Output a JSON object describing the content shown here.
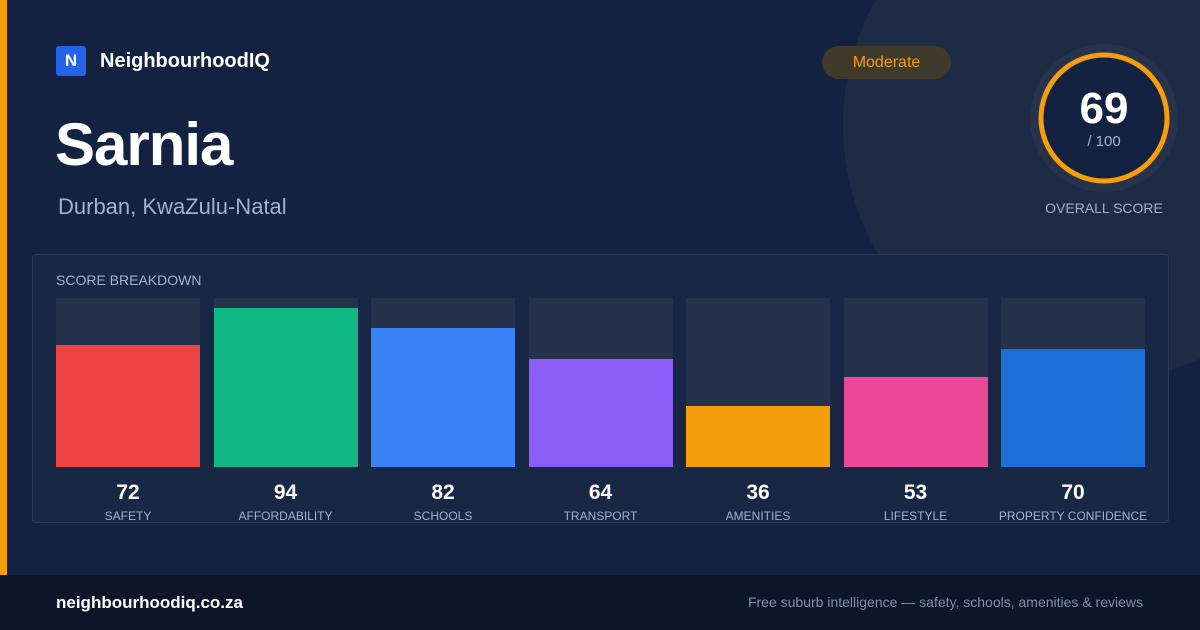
{
  "brand": {
    "logo_letter": "N",
    "name": "NeighbourhoodIQ"
  },
  "suburb": {
    "name": "Sarnia",
    "location": "Durban, KwaZulu-Natal"
  },
  "rating_badge": "Moderate",
  "overall": {
    "score": "69",
    "max": "/ 100",
    "label": "OVERALL SCORE",
    "fraction": 0.69,
    "ring_color": "#f59e0b"
  },
  "colors": {
    "accent": "#f59e0b",
    "background": "#132240"
  },
  "breakdown": {
    "title": "SCORE BREAKDOWN",
    "max_score": 100,
    "items": [
      {
        "label": "SAFETY",
        "value": "72",
        "score": 72,
        "color": "#ef4444"
      },
      {
        "label": "AFFORDABILITY",
        "value": "94",
        "score": 94,
        "color": "#10b981"
      },
      {
        "label": "SCHOOLS",
        "value": "82",
        "score": 82,
        "color": "#3b82f6"
      },
      {
        "label": "TRANSPORT",
        "value": "64",
        "score": 64,
        "color": "#8b5cf6"
      },
      {
        "label": "AMENITIES",
        "value": "36",
        "score": 36,
        "color": "#f59e0b"
      },
      {
        "label": "LIFESTYLE",
        "value": "53",
        "score": 53,
        "color": "#ec4899"
      },
      {
        "label": "PROPERTY CONFIDENCE",
        "value": "70",
        "score": 70,
        "color": "#1d6fd8"
      }
    ]
  },
  "footer": {
    "url": "neighbourhoodiq.co.za",
    "tagline": "Free suburb intelligence — safety, schools, amenities & reviews"
  }
}
